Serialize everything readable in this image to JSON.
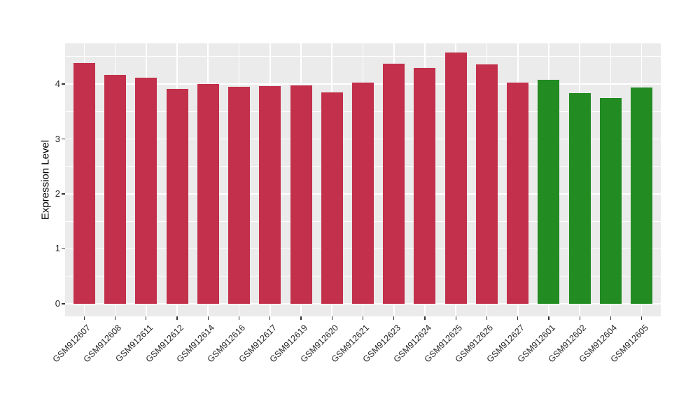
{
  "chart_data": {
    "type": "bar",
    "title": "",
    "xlabel": "",
    "ylabel": "Expression Level",
    "categories": [
      "GSM912607",
      "GSM912608",
      "GSM912611",
      "GSM912612",
      "GSM912614",
      "GSM912616",
      "GSM912617",
      "GSM912619",
      "GSM912620",
      "GSM912621",
      "GSM912623",
      "GSM912624",
      "GSM912625",
      "GSM912626",
      "GSM912627",
      "GSM912601",
      "GSM912602",
      "GSM912604",
      "GSM912605"
    ],
    "values": [
      4.38,
      4.17,
      4.11,
      3.91,
      4.0,
      3.95,
      3.96,
      3.97,
      3.85,
      4.02,
      4.37,
      4.29,
      4.58,
      4.36,
      4.03,
      4.08,
      3.83,
      3.74,
      3.94
    ],
    "bar_colors": [
      "#C2304B",
      "#C2304B",
      "#C2304B",
      "#C2304B",
      "#C2304B",
      "#C2304B",
      "#C2304B",
      "#C2304B",
      "#C2304B",
      "#C2304B",
      "#C2304B",
      "#C2304B",
      "#C2304B",
      "#C2304B",
      "#C2304B",
      "#228B22",
      "#228B22",
      "#228B22",
      "#228B22"
    ],
    "group_colors": {
      "red_group": "#C2304B",
      "green_group": "#228B22"
    },
    "yticks": [
      0,
      1,
      2,
      3,
      4
    ],
    "yticks_minor": [
      0.5,
      1.5,
      2.5,
      3.5,
      4.5
    ],
    "ylim": [
      -0.23,
      4.74
    ],
    "grid": true,
    "legend": false,
    "panel_bg": "#EBEBEB",
    "grid_color": "#FFFFFF",
    "axis_text_color": "#262626",
    "tick_color": "#333333"
  }
}
